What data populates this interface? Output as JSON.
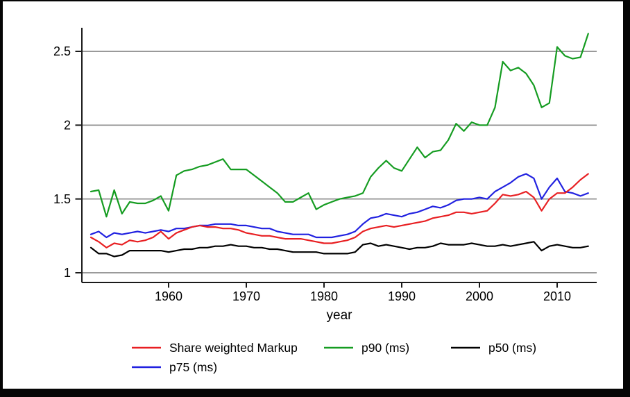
{
  "figure": {
    "frame_color": "#050505",
    "canvas_color": "#ffffff",
    "axis_color": "#1a1a1a",
    "gridline_color": "#8c8c8c"
  },
  "chart_data": {
    "type": "line",
    "title": "",
    "xlabel": "year",
    "ylabel": "",
    "xlim": [
      1948.8,
      2015.5
    ],
    "ylim": [
      0.93,
      2.72
    ],
    "xticks": [
      1960,
      1970,
      1980,
      1990,
      2000,
      2010
    ],
    "yticks": [
      1,
      1.5,
      2,
      2.5
    ],
    "ytick_labels": [
      "1",
      "1.5",
      "2",
      "2.5"
    ],
    "grid": "horizontal-only",
    "legend_position": "below-plot, two rows",
    "x": [
      1950,
      1951,
      1952,
      1953,
      1954,
      1955,
      1956,
      1957,
      1958,
      1959,
      1960,
      1961,
      1962,
      1963,
      1964,
      1965,
      1966,
      1967,
      1968,
      1969,
      1970,
      1971,
      1972,
      1973,
      1974,
      1975,
      1976,
      1977,
      1978,
      1979,
      1980,
      1981,
      1982,
      1983,
      1984,
      1985,
      1986,
      1987,
      1988,
      1989,
      1990,
      1991,
      1992,
      1993,
      1994,
      1995,
      1996,
      1997,
      1998,
      1999,
      2000,
      2001,
      2002,
      2003,
      2004,
      2005,
      2006,
      2007,
      2008,
      2009,
      2010,
      2011,
      2012,
      2013,
      2014
    ],
    "series": [
      {
        "name": "Share weighted Markup",
        "color": "#e81f22",
        "values": [
          1.24,
          1.21,
          1.17,
          1.2,
          1.19,
          1.22,
          1.21,
          1.22,
          1.24,
          1.28,
          1.23,
          1.27,
          1.29,
          1.31,
          1.32,
          1.31,
          1.31,
          1.3,
          1.3,
          1.29,
          1.27,
          1.26,
          1.25,
          1.25,
          1.24,
          1.23,
          1.23,
          1.23,
          1.22,
          1.21,
          1.2,
          1.2,
          1.21,
          1.22,
          1.24,
          1.28,
          1.3,
          1.31,
          1.32,
          1.31,
          1.32,
          1.33,
          1.34,
          1.35,
          1.37,
          1.38,
          1.39,
          1.41,
          1.41,
          1.4,
          1.41,
          1.42,
          1.47,
          1.53,
          1.52,
          1.53,
          1.55,
          1.51,
          1.42,
          1.5,
          1.54,
          1.54,
          1.58,
          1.63,
          1.67
        ]
      },
      {
        "name": "p90 (ms)",
        "color": "#159c21",
        "values": [
          1.55,
          1.56,
          1.38,
          1.56,
          1.4,
          1.48,
          1.47,
          1.47,
          1.49,
          1.52,
          1.42,
          1.66,
          1.69,
          1.7,
          1.72,
          1.73,
          1.75,
          1.77,
          1.7,
          1.7,
          1.7,
          1.66,
          1.62,
          1.58,
          1.54,
          1.48,
          1.48,
          1.51,
          1.54,
          1.43,
          1.46,
          1.48,
          1.5,
          1.51,
          1.52,
          1.54,
          1.65,
          1.71,
          1.76,
          1.71,
          1.69,
          1.77,
          1.85,
          1.78,
          1.82,
          1.83,
          1.9,
          2.01,
          1.96,
          2.02,
          2.0,
          2.0,
          2.12,
          2.43,
          2.37,
          2.39,
          2.35,
          2.27,
          2.12,
          2.15,
          2.53,
          2.47,
          2.45,
          2.46,
          2.62
        ]
      },
      {
        "name": "p50 (ms)",
        "color": "#000000",
        "values": [
          1.17,
          1.13,
          1.13,
          1.11,
          1.12,
          1.15,
          1.15,
          1.15,
          1.15,
          1.15,
          1.14,
          1.15,
          1.16,
          1.16,
          1.17,
          1.17,
          1.18,
          1.18,
          1.19,
          1.18,
          1.18,
          1.17,
          1.17,
          1.16,
          1.16,
          1.15,
          1.14,
          1.14,
          1.14,
          1.14,
          1.13,
          1.13,
          1.13,
          1.13,
          1.14,
          1.19,
          1.2,
          1.18,
          1.19,
          1.18,
          1.17,
          1.16,
          1.17,
          1.17,
          1.18,
          1.2,
          1.19,
          1.19,
          1.19,
          1.2,
          1.19,
          1.18,
          1.18,
          1.19,
          1.18,
          1.19,
          1.2,
          1.21,
          1.15,
          1.18,
          1.19,
          1.18,
          1.17,
          1.17,
          1.18
        ]
      },
      {
        "name": "p75 (ms)",
        "color": "#2121e0",
        "values": [
          1.26,
          1.28,
          1.24,
          1.27,
          1.26,
          1.27,
          1.28,
          1.27,
          1.28,
          1.29,
          1.28,
          1.3,
          1.3,
          1.31,
          1.32,
          1.32,
          1.33,
          1.33,
          1.33,
          1.32,
          1.32,
          1.31,
          1.3,
          1.3,
          1.28,
          1.27,
          1.26,
          1.26,
          1.26,
          1.24,
          1.24,
          1.24,
          1.25,
          1.26,
          1.28,
          1.33,
          1.37,
          1.38,
          1.4,
          1.39,
          1.38,
          1.4,
          1.41,
          1.43,
          1.45,
          1.44,
          1.46,
          1.49,
          1.5,
          1.5,
          1.51,
          1.5,
          1.55,
          1.58,
          1.61,
          1.65,
          1.67,
          1.64,
          1.5,
          1.58,
          1.64,
          1.55,
          1.54,
          1.52,
          1.54
        ]
      }
    ]
  }
}
